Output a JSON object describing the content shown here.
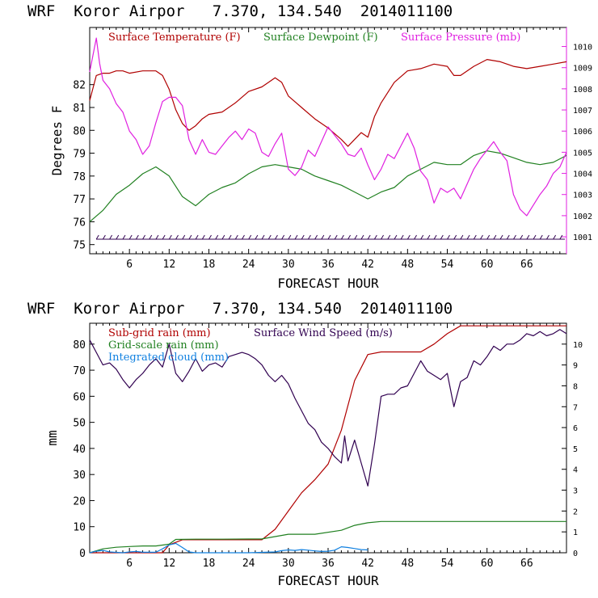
{
  "title_top": "WRF  Koror Airpor   7.370, 134.540  2014011100",
  "title_bottom": "WRF  Koror Airpor   7.370, 134.540  2014011100",
  "colors": {
    "temperature": "#b00000",
    "dewpoint": "#208020",
    "pressure": "#e020e0",
    "subgrid_rain": "#b00000",
    "gridscale_rain": "#208020",
    "cloud": "#1080e0",
    "wind": "#300050",
    "axis": "#000000",
    "pressure_axis": "#e020e0"
  },
  "chart_data": [
    {
      "type": "line",
      "xlabel": "FORECAST HOUR",
      "ylabel": "Degrees F",
      "xlim": [
        0,
        72
      ],
      "ylim": [
        74.6,
        84.5
      ],
      "xticks": [
        6,
        12,
        18,
        24,
        30,
        36,
        42,
        48,
        54,
        60,
        66
      ],
      "xtick_labels": [
        "6",
        "12",
        "18",
        "24",
        "30",
        "36",
        "42",
        "48",
        "54",
        "60",
        "66"
      ],
      "yticks": [
        75,
        76,
        77,
        78,
        79,
        80,
        81,
        82
      ],
      "ytick_labels": [
        "75",
        "76",
        "77",
        "78",
        "79",
        "80",
        "81",
        "82"
      ],
      "y2lim": [
        1000.2,
        1010.9
      ],
      "y2ticks": [
        1001,
        1002,
        1003,
        1004,
        1005,
        1006,
        1007,
        1008,
        1009,
        1010
      ],
      "y2tick_labels": [
        "1001",
        "1002",
        "1003",
        "1004",
        "1005",
        "1006",
        "1007",
        "1008",
        "1009",
        "1010"
      ],
      "legend_position": "top",
      "series": [
        {
          "name": "Surface Temperature (F)",
          "axis": "left",
          "x": [
            0,
            1,
            2,
            3,
            4,
            5,
            6,
            8,
            10,
            11,
            12,
            13,
            14,
            15,
            16,
            17,
            18,
            20,
            22,
            24,
            26,
            27,
            28,
            29,
            30,
            32,
            34,
            36,
            38,
            39,
            40,
            41,
            42,
            43,
            44,
            46,
            48,
            50,
            52,
            54,
            55,
            56,
            58,
            60,
            62,
            64,
            66,
            68,
            70,
            72
          ],
          "y": [
            81.3,
            82.4,
            82.5,
            82.5,
            82.6,
            82.6,
            82.5,
            82.6,
            82.6,
            82.4,
            81.8,
            80.9,
            80.3,
            80.0,
            80.2,
            80.5,
            80.7,
            80.8,
            81.2,
            81.7,
            81.9,
            82.1,
            82.3,
            82.1,
            81.5,
            81.0,
            80.5,
            80.1,
            79.6,
            79.3,
            79.6,
            79.9,
            79.7,
            80.6,
            81.2,
            82.1,
            82.6,
            82.7,
            82.9,
            82.8,
            82.4,
            82.4,
            82.8,
            83.1,
            83.0,
            82.8,
            82.7,
            82.8,
            82.9,
            83.0
          ]
        },
        {
          "name": "Surface Dewpoint (F)",
          "axis": "left",
          "x": [
            0,
            2,
            4,
            6,
            8,
            10,
            12,
            14,
            16,
            18,
            20,
            22,
            24,
            26,
            28,
            30,
            32,
            34,
            36,
            38,
            40,
            42,
            44,
            46,
            48,
            50,
            52,
            54,
            56,
            58,
            60,
            62,
            64,
            66,
            68,
            70,
            72
          ],
          "y": [
            76.0,
            76.5,
            77.2,
            77.6,
            78.1,
            78.4,
            78.0,
            77.1,
            76.7,
            77.2,
            77.5,
            77.7,
            78.1,
            78.4,
            78.5,
            78.4,
            78.3,
            78.0,
            77.8,
            77.6,
            77.3,
            77.0,
            77.3,
            77.5,
            78.0,
            78.3,
            78.6,
            78.5,
            78.5,
            78.9,
            79.1,
            79.0,
            78.8,
            78.6,
            78.5,
            78.6,
            78.9
          ]
        },
        {
          "name": "Surface Pressure (mb)",
          "axis": "right",
          "x": [
            0,
            0.5,
            1,
            1.5,
            2,
            3,
            4,
            5,
            6,
            7,
            8,
            9,
            10,
            11,
            12,
            13,
            14,
            15,
            16,
            17,
            18,
            19,
            20,
            21,
            22,
            23,
            24,
            25,
            26,
            27,
            28,
            29,
            30,
            31,
            32,
            33,
            34,
            35,
            36,
            37,
            38,
            39,
            40,
            41,
            42,
            43,
            44,
            45,
            46,
            47,
            48,
            49,
            50,
            51,
            52,
            53,
            54,
            55,
            56,
            57,
            58,
            59,
            60,
            61,
            62,
            63,
            64,
            65,
            66,
            67,
            68,
            69,
            70,
            71,
            72
          ],
          "y": [
            1008.8,
            1009.6,
            1010.4,
            1009.2,
            1008.4,
            1008.0,
            1007.3,
            1006.9,
            1006.0,
            1005.6,
            1004.9,
            1005.3,
            1006.4,
            1007.4,
            1007.6,
            1007.6,
            1007.2,
            1005.6,
            1004.9,
            1005.6,
            1005.0,
            1004.9,
            1005.3,
            1005.7,
            1006.0,
            1005.6,
            1006.1,
            1005.9,
            1005.0,
            1004.8,
            1005.4,
            1005.9,
            1004.2,
            1003.9,
            1004.3,
            1005.1,
            1004.8,
            1005.5,
            1006.2,
            1005.8,
            1005.4,
            1004.9,
            1004.8,
            1005.2,
            1004.4,
            1003.7,
            1004.2,
            1004.9,
            1004.7,
            1005.3,
            1005.9,
            1005.2,
            1004.1,
            1003.7,
            1002.6,
            1003.3,
            1003.1,
            1003.3,
            1002.8,
            1003.5,
            1004.2,
            1004.7,
            1005.1,
            1005.5,
            1005.0,
            1004.6,
            1003.0,
            1002.3,
            1002.0,
            1002.5,
            1003.0,
            1003.4,
            1004.0,
            1004.3,
            1005.0
          ]
        }
      ]
    },
    {
      "type": "line",
      "xlabel": "FORECAST HOUR",
      "ylabel": "mm",
      "xlim": [
        0,
        72
      ],
      "ylim": [
        0,
        88
      ],
      "xticks": [
        6,
        12,
        18,
        24,
        30,
        36,
        42,
        48,
        54,
        60,
        66
      ],
      "xtick_labels": [
        "6",
        "12",
        "18",
        "24",
        "30",
        "36",
        "42",
        "48",
        "54",
        "60",
        "66"
      ],
      "yticks": [
        0,
        10,
        20,
        30,
        40,
        50,
        60,
        70,
        80
      ],
      "ytick_labels": [
        "0",
        "10",
        "20",
        "30",
        "40",
        "50",
        "60",
        "70",
        "80"
      ],
      "y2lim": [
        0,
        11
      ],
      "y2ticks": [
        0,
        1,
        2,
        3,
        4,
        5,
        6,
        7,
        8,
        9,
        10
      ],
      "y2tick_labels": [
        "0",
        "1",
        "2",
        "3",
        "4",
        "5",
        "6",
        "7",
        "8",
        "9",
        "10"
      ],
      "legend_position": "top-left",
      "series": [
        {
          "name": "Sub-grid rain (mm)",
          "axis": "left",
          "x": [
            0,
            11,
            12,
            14,
            26,
            28,
            30,
            32,
            34,
            36,
            38,
            40,
            42,
            44,
            50,
            52,
            54,
            56,
            58,
            64,
            72
          ],
          "y": [
            0,
            0,
            3,
            5,
            5,
            9,
            16,
            23,
            28,
            34,
            47,
            66,
            76,
            77,
            77,
            80,
            84,
            87,
            87,
            87,
            87
          ]
        },
        {
          "name": "Grid-scale rain (mm)",
          "axis": "left",
          "x": [
            0,
            2,
            4,
            6,
            8,
            10,
            12,
            13,
            16,
            20,
            26,
            28,
            30,
            34,
            38,
            40,
            42,
            44,
            50,
            60,
            72
          ],
          "y": [
            0,
            1.5,
            2.1,
            2.4,
            2.6,
            2.6,
            3.3,
            5.1,
            5.2,
            5.2,
            5.3,
            6.2,
            7.1,
            7.1,
            8.6,
            10.5,
            11.5,
            12.0,
            12.0,
            12.0,
            12.0
          ]
        },
        {
          "name": "Integrated cloud (mm)",
          "axis": "left",
          "x": [
            0,
            1,
            2,
            3,
            5,
            6,
            7,
            8,
            10,
            11,
            12,
            13,
            14,
            15,
            16,
            24,
            28,
            29,
            30,
            31,
            32,
            33,
            34,
            35,
            36,
            37,
            38,
            39,
            40,
            41,
            42
          ],
          "y": [
            0,
            0.6,
            0.9,
            0.3,
            0,
            0.3,
            0.5,
            0.2,
            0.2,
            1.5,
            3.0,
            3.6,
            2.0,
            0.3,
            0,
            0,
            0.3,
            0.8,
            1.1,
            0.9,
            1.2,
            1.0,
            0.7,
            0.5,
            0.6,
            1.0,
            2.3,
            2.0,
            1.6,
            1.2,
            1.1
          ]
        },
        {
          "name": "Surface Wind Speed (m/s)",
          "axis": "right",
          "x": [
            0,
            1,
            2,
            3,
            4,
            5,
            6,
            7,
            8,
            9,
            10,
            11,
            12,
            13,
            14,
            15,
            16,
            17,
            18,
            19,
            20,
            21,
            22,
            23,
            24,
            25,
            26,
            27,
            28,
            29,
            30,
            31,
            32,
            33,
            34,
            35,
            36,
            37,
            38,
            38.5,
            39,
            40,
            41,
            42,
            43,
            44,
            45,
            46,
            47,
            48,
            49,
            50,
            51,
            52,
            53,
            54,
            55,
            56,
            57,
            58,
            59,
            60,
            61,
            62,
            63,
            64,
            65,
            66,
            67,
            68,
            69,
            70,
            71,
            72
          ],
          "y": [
            10.2,
            9.6,
            9.0,
            9.1,
            8.8,
            8.3,
            7.9,
            8.3,
            8.6,
            9.0,
            9.3,
            8.9,
            10.0,
            8.6,
            8.2,
            8.7,
            9.3,
            8.7,
            9.0,
            9.1,
            8.9,
            9.4,
            9.5,
            9.6,
            9.5,
            9.3,
            9.0,
            8.5,
            8.2,
            8.5,
            8.1,
            7.4,
            6.8,
            6.2,
            5.9,
            5.3,
            5.0,
            4.6,
            4.3,
            5.6,
            4.4,
            5.4,
            4.3,
            3.2,
            5.2,
            7.5,
            7.6,
            7.6,
            7.9,
            8.0,
            8.6,
            9.2,
            8.7,
            8.5,
            8.3,
            8.6,
            7.0,
            8.2,
            8.4,
            9.2,
            9.0,
            9.4,
            9.9,
            9.7,
            10.0,
            10.0,
            10.2,
            10.5,
            10.4,
            10.6,
            10.4,
            10.5,
            10.7,
            10.5
          ]
        }
      ]
    }
  ]
}
